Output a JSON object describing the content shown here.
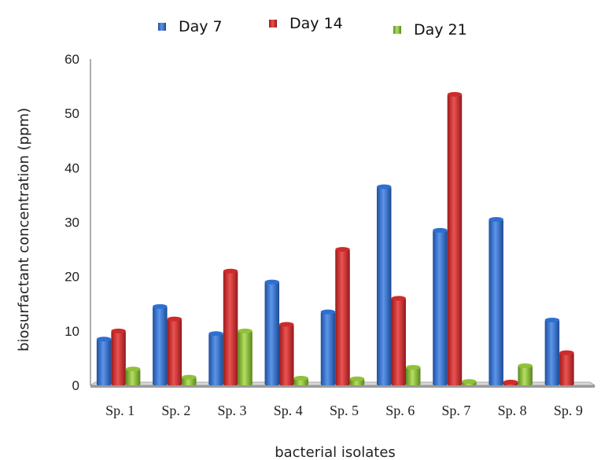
{
  "chart_data": {
    "type": "bar",
    "title": "",
    "xlabel": "bacterial isolates",
    "ylabel": "biosurfactant concentration (ppm)",
    "ylim": [
      0,
      60
    ],
    "yticks": [
      0,
      10,
      20,
      30,
      40,
      50,
      60
    ],
    "grid": false,
    "legend_position": "top",
    "categories": [
      "Sp. 1",
      "Sp. 2",
      "Sp. 3",
      "Sp. 4",
      "Sp. 5",
      "Sp. 6",
      "Sp. 7",
      "Sp. 8",
      "Sp. 9"
    ],
    "series": [
      {
        "name": "Day 7",
        "color": "#2f6fd0",
        "values": [
          8.5,
          14.5,
          9.5,
          19,
          13.5,
          36.5,
          28.5,
          30.5,
          12
        ]
      },
      {
        "name": "Day 14",
        "color": "#d02a2a",
        "values": [
          10,
          12.2,
          21,
          11.2,
          25,
          16,
          53.5,
          0.6,
          6
        ]
      },
      {
        "name": "Day 21",
        "color": "#8fc23a",
        "values": [
          3,
          1.5,
          10,
          1.3,
          1.2,
          3.3,
          0.7,
          3.6,
          0
        ]
      }
    ]
  }
}
